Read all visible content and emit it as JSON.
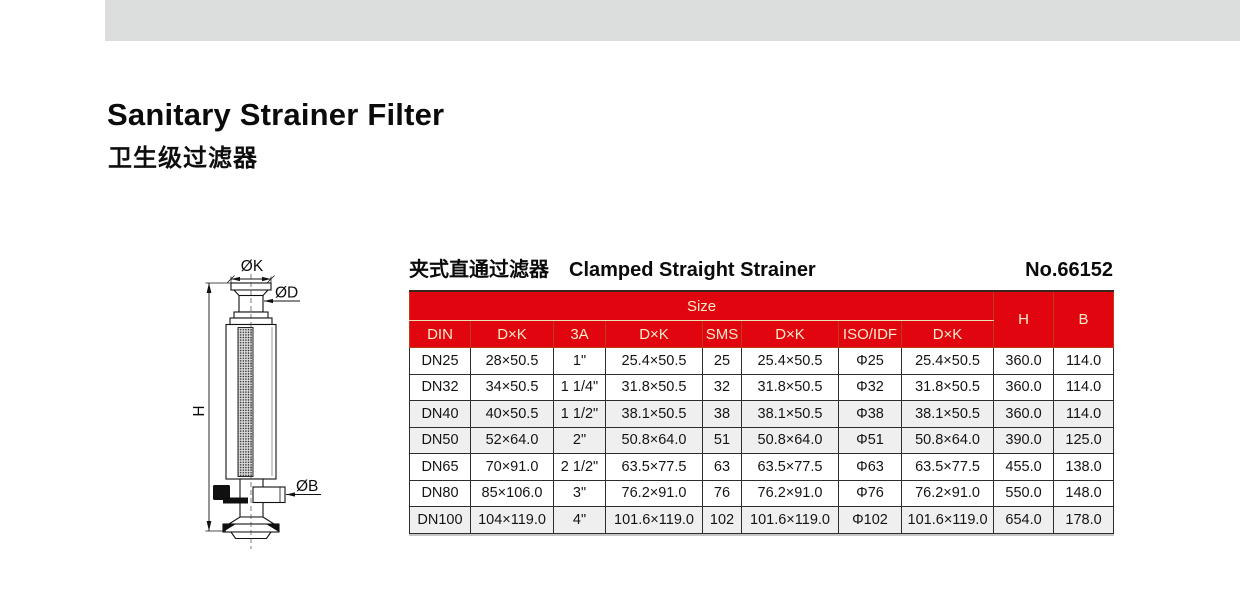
{
  "page": {
    "title": "Sanitary Strainer Filter",
    "subtitle": "卫生级过滤器"
  },
  "section": {
    "heading_zh": "夹式直通过滤器",
    "heading_en": "Clamped Straight Strainer",
    "model_no": "No.66152"
  },
  "diagram": {
    "labels": {
      "top_diameter": "ØK",
      "neck_diameter": "ØD",
      "outlet_diameter": "ØB",
      "height": "H"
    }
  },
  "table": {
    "size_header": "Size",
    "columns": [
      "DIN",
      "D×K",
      "3A",
      "D×K",
      "SMS",
      "D×K",
      "ISO/IDF",
      "D×K"
    ],
    "h_header": "H",
    "b_header": "B",
    "rows": [
      [
        "DN25",
        "28×50.5",
        "1\"",
        "25.4×50.5",
        "25",
        "25.4×50.5",
        "Φ25",
        "25.4×50.5",
        "360.0",
        "114.0"
      ],
      [
        "DN32",
        "34×50.5",
        "1 1/4\"",
        "31.8×50.5",
        "32",
        "31.8×50.5",
        "Φ32",
        "31.8×50.5",
        "360.0",
        "114.0"
      ],
      [
        "DN40",
        "40×50.5",
        "1 1/2\"",
        "38.1×50.5",
        "38",
        "38.1×50.5",
        "Φ38",
        "38.1×50.5",
        "360.0",
        "114.0"
      ],
      [
        "DN50",
        "52×64.0",
        "2\"",
        "50.8×64.0",
        "51",
        "50.8×64.0",
        "Φ51",
        "50.8×64.0",
        "390.0",
        "125.0"
      ],
      [
        "DN65",
        "70×91.0",
        "2 1/2\"",
        "63.5×77.5",
        "63",
        "63.5×77.5",
        "Φ63",
        "63.5×77.5",
        "455.0",
        "138.0"
      ],
      [
        "DN80",
        "85×106.0",
        "3\"",
        "76.2×91.0",
        "76",
        "76.2×91.0",
        "Φ76",
        "76.2×91.0",
        "550.0",
        "148.0"
      ],
      [
        "DN100",
        "104×119.0",
        "4\"",
        "101.6×119.0",
        "102",
        "101.6×119.0",
        "Φ102",
        "101.6×119.0",
        "654.0",
        "178.0"
      ]
    ]
  },
  "colors": {
    "accent_red": "#E10510",
    "header_text_cream": "#F8ECC8",
    "top_bar_gray": "#DCDDDD",
    "zebra_row_gray": "#EFEFEF"
  }
}
